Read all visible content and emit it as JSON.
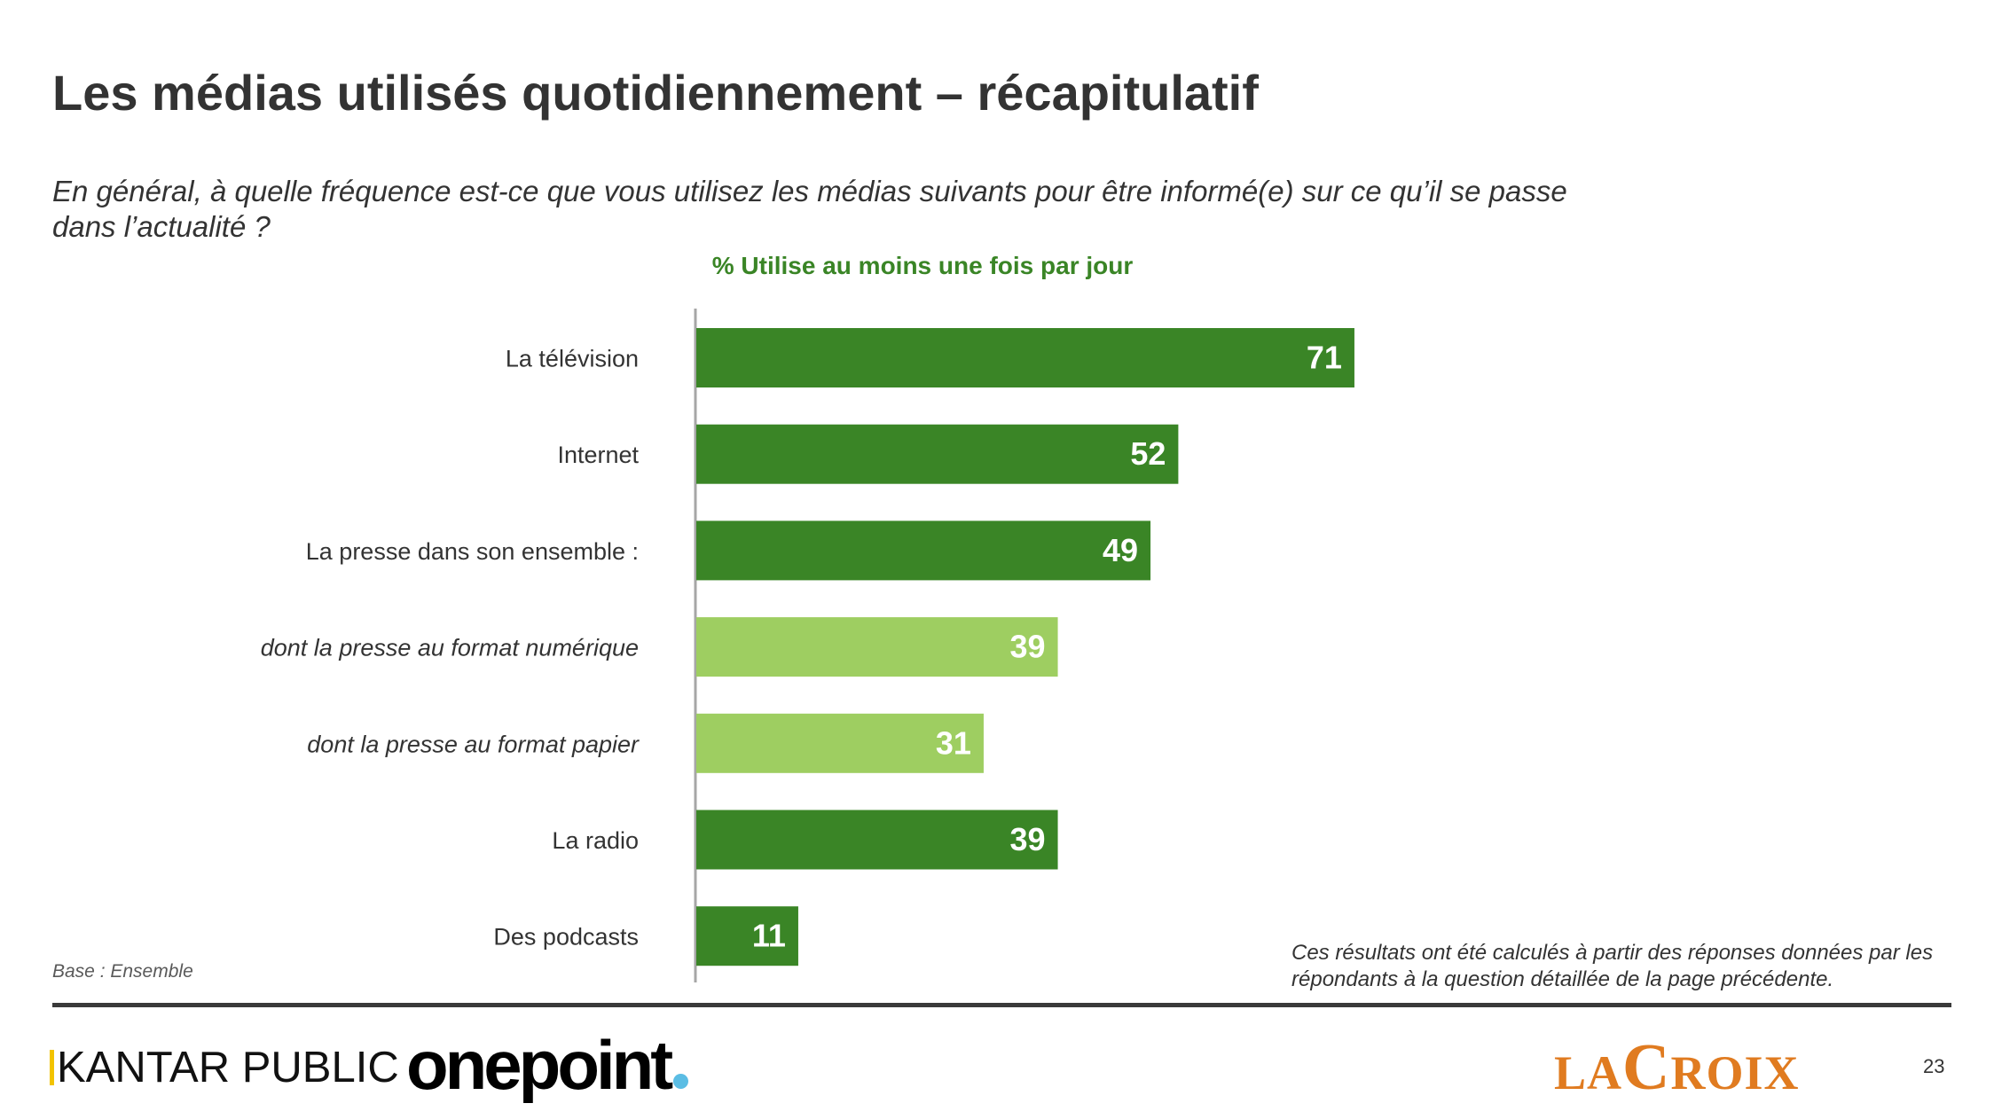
{
  "title": "Les médias utilisés quotidiennement – récapitulatif",
  "question": "En général, à quelle fréquence est-ce que vous utilisez les médias suivants pour être informé(e) sur ce qu’il se passe dans l’actualité ?",
  "base_note": "Base : Ensemble",
  "calc_note": "Ces résultats ont été calculés à partir des réponses données par les répondants à la question détaillée de la page précédente.",
  "page_number": "23",
  "logos": {
    "kantar": "KANTAR PUBLIC",
    "onepoint": "onepoint",
    "lacroix_la": "LA",
    "lacroix_c": "C",
    "lacroix_roix": "ROIX"
  },
  "colors": {
    "dark_green": "#3a8526",
    "light_green": "#9ece61",
    "subtitle_green": "#3a8526",
    "axis": "#a6a6a6",
    "lacroix_orange": "#e07b20",
    "onepoint_dot": "#5bbde4",
    "kantar_yellow": "#f2c300"
  },
  "chart_data": {
    "type": "bar",
    "orientation": "horizontal",
    "title": "% Utilise au moins une fois par jour",
    "xlim": [
      0,
      100
    ],
    "categories": [
      "La télévision",
      "Internet",
      "La presse dans son ensemble :",
      "dont la presse au format numérique",
      "dont la presse au format papier",
      "La radio",
      "Des podcasts"
    ],
    "values": [
      71,
      52,
      49,
      39,
      31,
      39,
      11
    ],
    "label_style": [
      "normal",
      "normal",
      "normal",
      "italic",
      "italic",
      "normal",
      "normal"
    ],
    "bar_color": [
      "dark",
      "dark",
      "dark",
      "light",
      "light",
      "dark",
      "dark"
    ]
  }
}
